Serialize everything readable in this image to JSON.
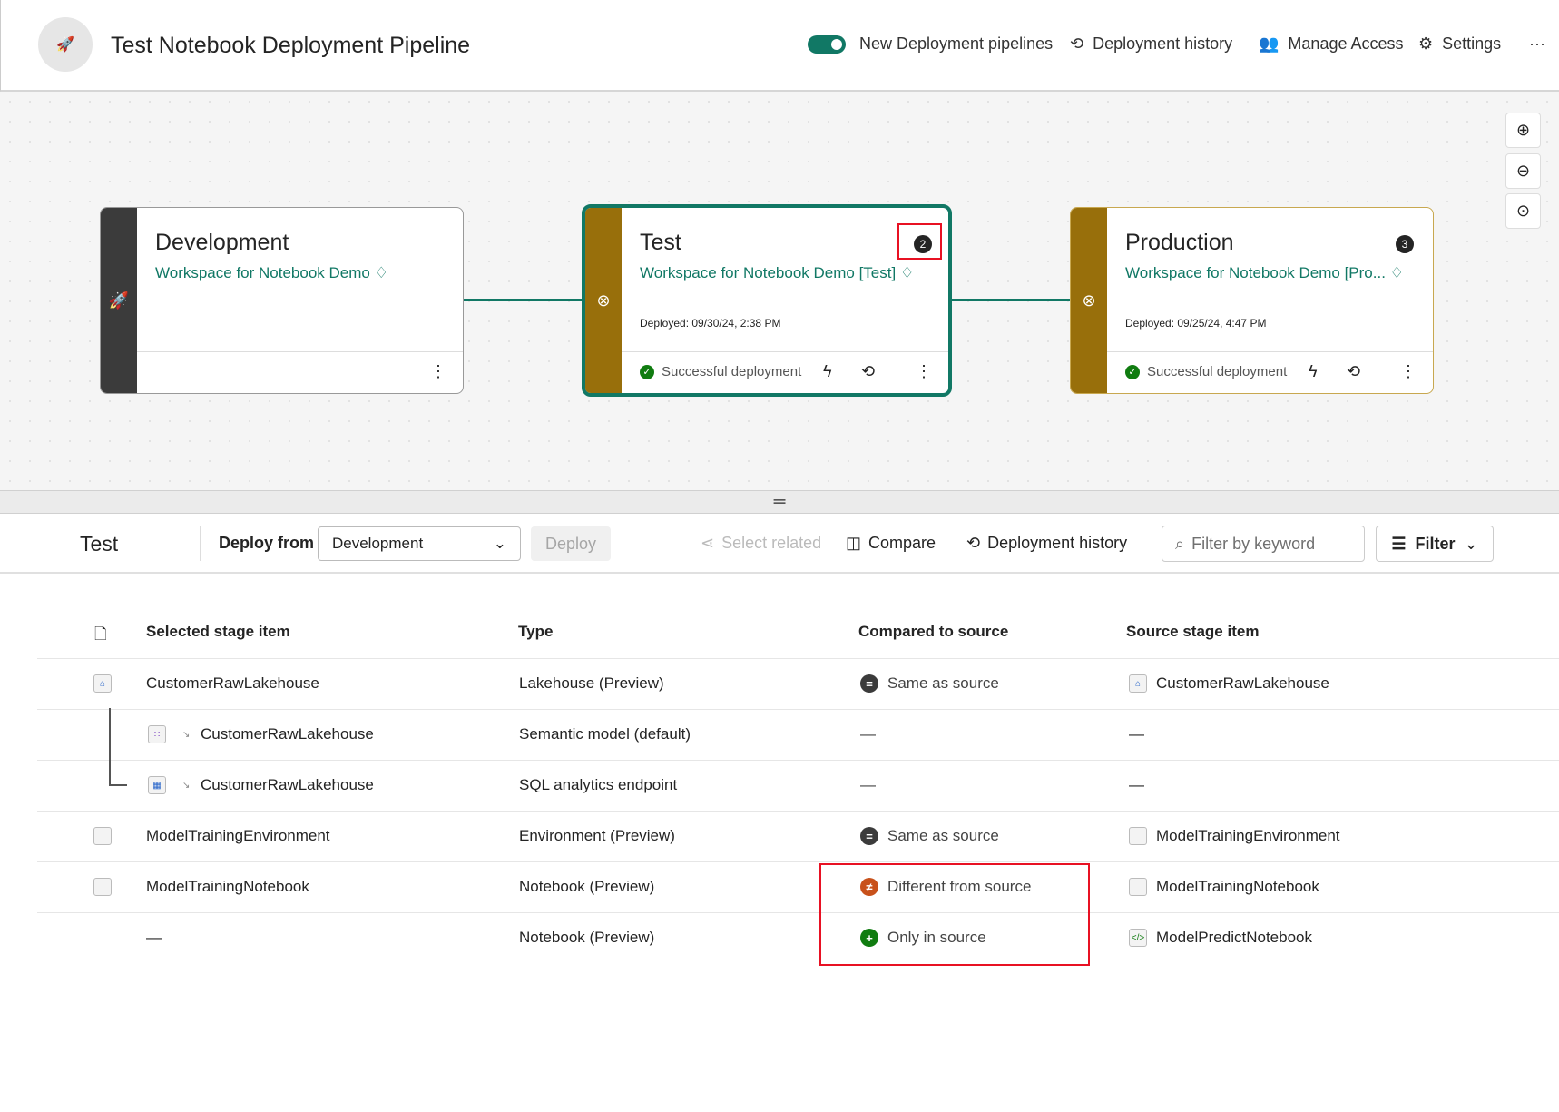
{
  "header": {
    "title": "Test Notebook Deployment Pipeline",
    "toggle_label": "New Deployment pipelines",
    "toggle_on": true,
    "history": "Deployment history",
    "access": "Manage Access",
    "settings": "Settings",
    "more": "···"
  },
  "stages": [
    {
      "name": "Development",
      "workspace": "Workspace for Notebook Demo",
      "color": "#3b3b3b"
    },
    {
      "name": "Test",
      "workspace": "Workspace for Notebook Demo [Test]",
      "deployed": "Deployed: 09/30/24, 2:38 PM",
      "status": "Successful deployment",
      "badge": "2",
      "color": "#986f0b",
      "selected": true
    },
    {
      "name": "Production",
      "workspace": "Workspace for Notebook Demo [Pro...",
      "deployed": "Deployed: 09/25/24, 4:47 PM",
      "status": "Successful deployment",
      "badge": "3",
      "color": "#986f0b"
    }
  ],
  "toolbar": {
    "stage": "Test",
    "deploy_from_label": "Deploy from",
    "deploy_from_value": "Development",
    "deploy": "Deploy",
    "select_related": "Select related",
    "compare": "Compare",
    "history": "Deployment history",
    "search_placeholder": "Filter by keyword",
    "filter": "Filter"
  },
  "table": {
    "headers": [
      "Selected stage item",
      "Type",
      "Compared to source",
      "Source stage item"
    ],
    "rows": [
      {
        "item": "CustomerRawLakehouse",
        "type": "Lakehouse (Preview)",
        "compare": "Same as source",
        "source": "CustomerRawLakehouse"
      },
      {
        "item": "CustomerRawLakehouse",
        "type": "Semantic model (default)",
        "compare": "—",
        "source": "—"
      },
      {
        "item": "CustomerRawLakehouse",
        "type": "SQL analytics endpoint",
        "compare": "—",
        "source": "—"
      },
      {
        "item": "ModelTrainingEnvironment",
        "type": "Environment (Preview)",
        "compare": "Same as source",
        "source": "ModelTrainingEnvironment"
      },
      {
        "item": "ModelTrainingNotebook",
        "type": "Notebook (Preview)",
        "compare": "Different from source",
        "source": "ModelTrainingNotebook"
      },
      {
        "item": "—",
        "type": "Notebook (Preview)",
        "compare": "Only in source",
        "source": "ModelPredictNotebook"
      }
    ]
  }
}
